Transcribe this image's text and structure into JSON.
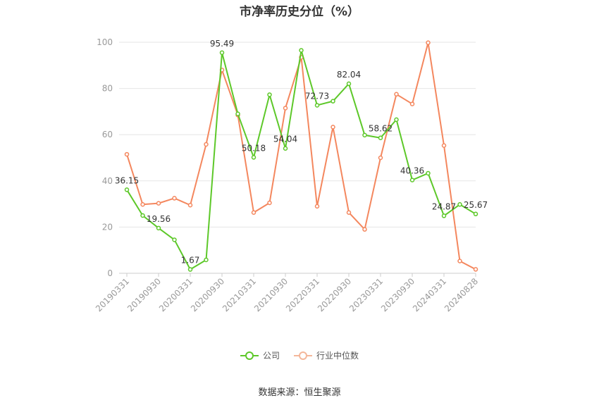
{
  "title": "市净率历史分位（%）",
  "source": "数据来源：恒生聚源",
  "chart_data": {
    "type": "line",
    "ylim": [
      0,
      100
    ],
    "yticks": [
      0,
      20,
      40,
      60,
      80,
      100
    ],
    "xtick_labels": [
      "20190331",
      "20190930",
      "20200331",
      "20200930",
      "20210331",
      "20210930",
      "20220331",
      "20220930",
      "20230331",
      "20230930",
      "20240331",
      "20240828"
    ],
    "grid": true,
    "legend_position": "bottom",
    "series": [
      {
        "name": "公司",
        "color": "#5dc829",
        "values": [
          36.15,
          25.0,
          19.56,
          14.5,
          1.67,
          5.8,
          95.49,
          69.0,
          50.18,
          77.3,
          54.04,
          96.5,
          72.73,
          74.5,
          82.04,
          59.8,
          58.62,
          66.5,
          40.36,
          43.3,
          24.87,
          29.8,
          25.67
        ],
        "labels": {
          "0": "36.15",
          "2": "19.56",
          "4": "1.67",
          "6": "95.49",
          "8": "50.18",
          "10": "54.04",
          "12": "72.73",
          "14": "82.04",
          "16": "58.62",
          "18": "40.36",
          "20": "24.87",
          "22": "25.67"
        }
      },
      {
        "name": "行业中位数",
        "color": "#f4875e",
        "values": [
          51.5,
          29.8,
          30.3,
          32.5,
          29.5,
          55.8,
          88.0,
          68.5,
          26.3,
          30.5,
          71.5,
          93.5,
          29.0,
          63.3,
          26.3,
          19.0,
          50.0,
          77.5,
          73.3,
          99.8,
          55.3,
          5.3,
          1.7
        ]
      }
    ]
  }
}
